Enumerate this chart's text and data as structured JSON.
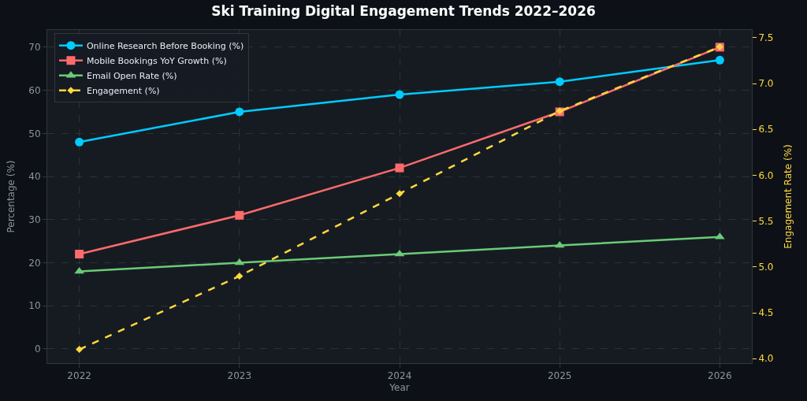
{
  "chart_data": {
    "type": "line",
    "title": "Ski Training Digital Engagement Trends 2022–2026",
    "xlabel": "Year",
    "ylabel": "Percentage (%)",
    "y2label": "Engagement Rate (%)",
    "x": [
      2022,
      2023,
      2024,
      2025,
      2026
    ],
    "series": [
      {
        "name": "Online Research Before Booking (%)",
        "color": "#00ccff",
        "marker": "circle",
        "line_style": "solid",
        "values": [
          48,
          55,
          59,
          62,
          67
        ]
      },
      {
        "name": "Mobile Bookings YoY Growth (%)",
        "color": "#ff6b6b",
        "marker": "square",
        "line_style": "solid",
        "values": [
          22,
          31,
          42,
          55,
          70
        ]
      },
      {
        "name": "Email Open Rate (%)",
        "color": "#6bcb77",
        "marker": "triangle",
        "line_style": "solid",
        "values": [
          18,
          20,
          22,
          24,
          26
        ]
      },
      {
        "name": "Engagement (%)",
        "color": "#ffd93d",
        "marker": "diamond",
        "line_style": "dashed",
        "axis": "y2",
        "values": [
          4.1,
          4.9,
          5.8,
          6.7,
          7.4
        ]
      }
    ],
    "xlim": [
      2021.8,
      2026.2
    ],
    "xticks": [
      2022,
      2023,
      2024,
      2025,
      2026
    ],
    "ylim": [
      -3.3,
      74
    ],
    "yticks": [
      0,
      10,
      20,
      30,
      40,
      50,
      60,
      70
    ],
    "y2lim": [
      3.95,
      7.585
    ],
    "y2ticks": [
      {
        "value": 4.0,
        "label": "4.0"
      },
      {
        "value": 4.5,
        "label": "4.5"
      },
      {
        "value": 5.0,
        "label": "5.0"
      },
      {
        "value": 5.5,
        "label": "5.5"
      },
      {
        "value": 6.0,
        "label": "6.0"
      },
      {
        "value": 6.5,
        "label": "6.5"
      },
      {
        "value": 7.0,
        "label": "7.0"
      },
      {
        "value": 7.5,
        "label": "7.5"
      }
    ],
    "grid": true,
    "legend": "top left"
  }
}
